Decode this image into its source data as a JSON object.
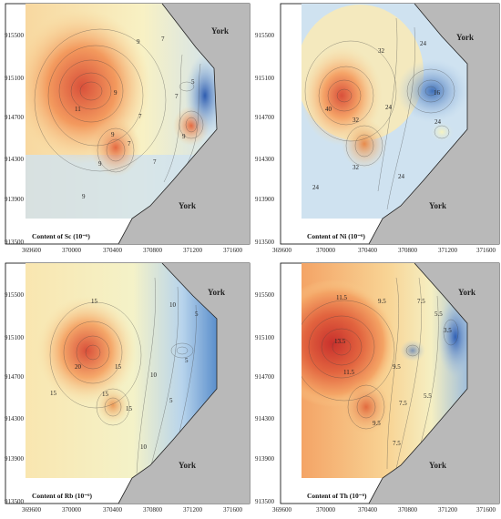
{
  "panels": [
    {
      "title": "Content of Sc (10⁻⁶)",
      "labels": [
        "9",
        "7",
        "5",
        "9",
        "7",
        "11",
        "9",
        "7",
        "9",
        "9",
        "7",
        "9",
        "7"
      ]
    },
    {
      "title": "Content of Ni (10⁻⁶)",
      "labels": [
        "32",
        "24",
        "40",
        "32",
        "16",
        "24",
        "24",
        "32",
        "24",
        "24"
      ]
    },
    {
      "title": "Content of Rb (10⁻⁶)",
      "labels": [
        "15",
        "10",
        "5",
        "20",
        "15",
        "15",
        "10",
        "5",
        "5",
        "15",
        "15",
        "10"
      ]
    },
    {
      "title": "Content of Th (10⁻⁶)",
      "labels": [
        "11.5",
        "9.5",
        "7.5",
        "5.5",
        "13.5",
        "3.5",
        "11.5",
        "9.5",
        "7.5",
        "5.5",
        "9.5",
        "7.5"
      ]
    }
  ],
  "place_label": "York",
  "x_ticks": [
    "369600",
    "370000",
    "370400",
    "370800",
    "371200",
    "371600"
  ],
  "y_ticks": [
    "915500",
    "915100",
    "914700",
    "914300",
    "913900",
    "913500"
  ],
  "colors": {
    "high": "#e0603a",
    "mid": "#f7f0b8",
    "low": "#5b8ed0",
    "land": "#b9b9b9"
  }
}
